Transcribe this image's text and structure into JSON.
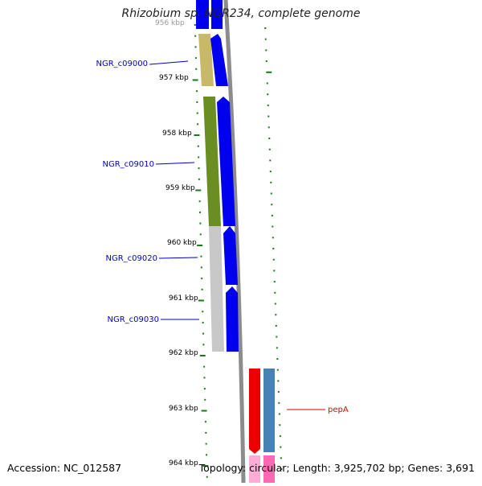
{
  "title": "Rhizobium sp. NGR234, complete genome",
  "accession": "Accession: NC_012587",
  "summary": "Topology: circular; Length: 3,925,702 bp; Genes: 3,691",
  "ruler": {
    "partial_top_label": "956 kbp",
    "labels": [
      {
        "kbp": 957,
        "text": "957 kbp"
      },
      {
        "kbp": 958,
        "text": "958 kbp"
      },
      {
        "kbp": 959,
        "text": "959 kbp"
      },
      {
        "kbp": 960,
        "text": "960 kbp"
      },
      {
        "kbp": 961,
        "text": "961 kbp"
      },
      {
        "kbp": 962,
        "text": "962 kbp"
      },
      {
        "kbp": 963,
        "text": "963 kbp"
      },
      {
        "kbp": 964,
        "text": "964 kbp"
      }
    ]
  },
  "genes": [
    {
      "label": "NGR_c09000",
      "color": "#c8b96a",
      "cds_color": "#0000ee"
    },
    {
      "label": "NGR_c09010",
      "color": "#6b8e23",
      "cds_color": "#0000ee"
    },
    {
      "label": "NGR_c09020",
      "color": "#c8c8c8",
      "cds_color": "#0000ee"
    },
    {
      "label": "NGR_c09030",
      "color": "#c8c8c8",
      "cds_color": "#0000ee"
    },
    {
      "label": "pepA",
      "color": "#ee0000",
      "cds_color": "#4682b4"
    }
  ],
  "colors": {
    "tick": "#1a7a1a",
    "backbone": "#8c8c8c",
    "left_label": "#0000cc",
    "right_label": "#dd0000",
    "ruler_text": "#000000",
    "pink": "#ff69b4"
  }
}
